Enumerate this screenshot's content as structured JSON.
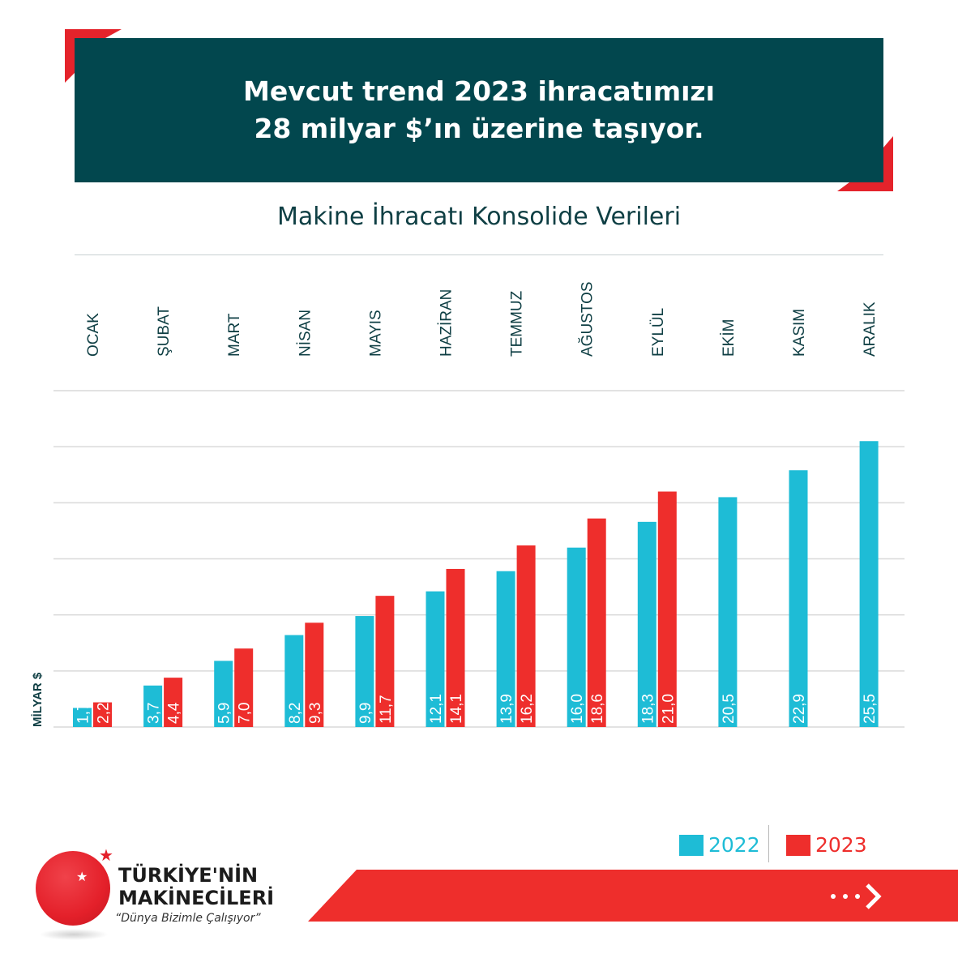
{
  "header": {
    "line1": "Mevcut trend 2023 ihracatımızı",
    "line2": "28 milyar $’ın üzerine taşıyor."
  },
  "chart_data": {
    "type": "bar",
    "title": "Makine İhracatı Konsolide Verileri",
    "ylabel": "MİLYAR $",
    "categories": [
      "OCAK",
      "ŞUBAT",
      "MART",
      "NİSAN",
      "MAYIS",
      "HAZİRAN",
      "TEMMUZ",
      "AĞUSTOS",
      "EYLÜL",
      "EKİM",
      "KASIM",
      "ARALIK"
    ],
    "series": [
      {
        "name": "2022",
        "values": [
          1.7,
          3.7,
          5.9,
          8.2,
          9.9,
          12.1,
          13.9,
          16.0,
          18.3,
          20.5,
          22.9,
          25.5
        ],
        "labels": [
          "1,7",
          "3,7",
          "5,9",
          "8,2",
          "9,9",
          "12,1",
          "13,9",
          "16,0",
          "18,3",
          "20,5",
          "22,9",
          "25,5"
        ],
        "color": "#1ebcd6"
      },
      {
        "name": "2023",
        "values": [
          2.2,
          4.4,
          7.0,
          9.3,
          11.7,
          14.1,
          16.2,
          18.6,
          21.0,
          null,
          null,
          null
        ],
        "labels": [
          "2,2",
          "4,4",
          "7,0",
          "9,3",
          "11,7",
          "14,1",
          "16,2",
          "18,6",
          "21,0",
          null,
          null,
          null
        ],
        "color": "#ee2e2c"
      }
    ],
    "ylim": [
      0,
      30
    ],
    "grid": true,
    "legend": "bottom-right"
  },
  "legend": {
    "items": [
      {
        "label": "2022",
        "color": "#1ebcd6"
      },
      {
        "label": "2023",
        "color": "#ee2e2c"
      }
    ]
  },
  "brand": {
    "line1": "TÜRKİYE'NİN",
    "line2": "MAKİNECİLERİ",
    "slogan": "“Dünya Bizimle Çalışıyor”"
  },
  "colors": {
    "header_bg": "#02474e",
    "accent_red": "#ee2e2c",
    "text_dark": "#0f3f44"
  }
}
